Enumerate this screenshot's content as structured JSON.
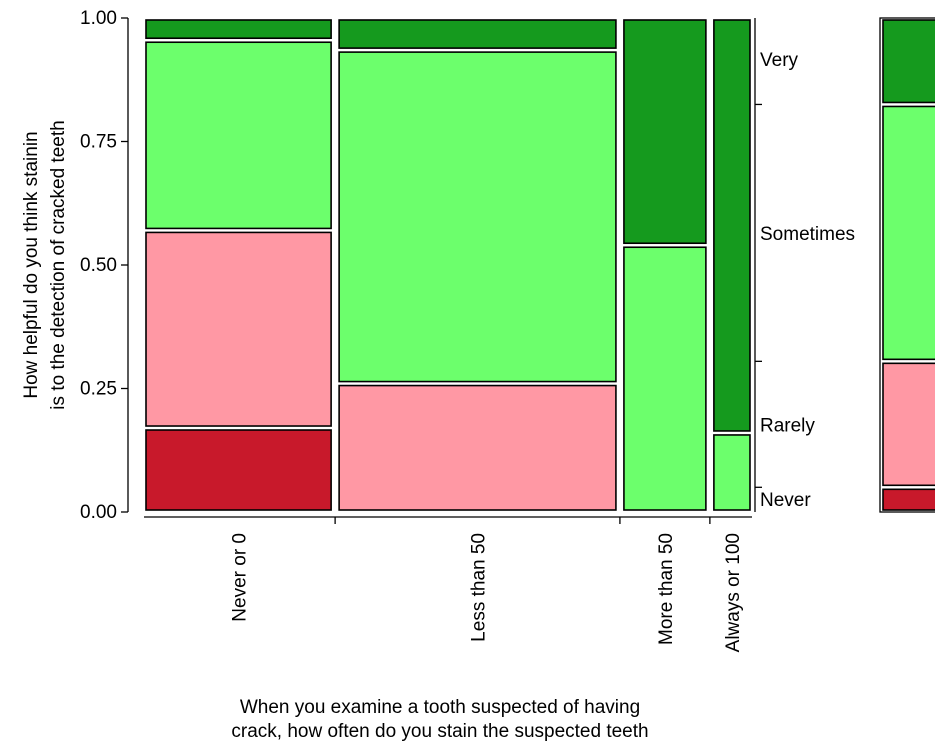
{
  "chart_data": {
    "type": "mosaic",
    "xlabel_lines": [
      "When you examine a tooth suspected of having",
      "crack, how often do you stain the suspected teeth"
    ],
    "ylabel_lines": [
      "How helpful do you think stainin",
      "is to the detection of cracked teeth"
    ],
    "ylim": [
      0,
      1
    ],
    "yticks": [
      "0.00",
      "0.25",
      "0.50",
      "0.75",
      "1.00"
    ],
    "ytick_values": [
      0,
      0.25,
      0.5,
      0.75,
      1
    ],
    "categories": [
      "Never or 0",
      "Less than 50",
      "More than 50",
      "Always or 100"
    ],
    "column_widths": [
      0.33,
      0.49,
      0.15,
      0.07
    ],
    "levels": [
      "Never",
      "Rarely",
      "Sometimes",
      "Very"
    ],
    "level_colors": {
      "Never": "#c8192b",
      "Rarely": "#ff98a4",
      "Sometimes": "#6cff6c",
      "Very": "#159a1e"
    },
    "proportions": [
      {
        "category": "Never or 0",
        "Never": 0.17,
        "Rarely": 0.4,
        "Sometimes": 0.385,
        "Very": 0.045
      },
      {
        "category": "Less than 50",
        "Never": 0.0,
        "Rarely": 0.26,
        "Sometimes": 0.675,
        "Very": 0.065
      },
      {
        "category": "More than 50",
        "Never": 0.0,
        "Rarely": 0.0,
        "Sometimes": 0.54,
        "Very": 0.46
      },
      {
        "category": "Always or 100",
        "Never": 0.0,
        "Rarely": 0.0,
        "Sometimes": 0.16,
        "Very": 0.84
      }
    ],
    "marginal": {
      "Never": 0.05,
      "Rarely": 0.255,
      "Sometimes": 0.52,
      "Very": 0.175
    },
    "right_axis_labels": [
      "Very",
      "Sometimes",
      "Rarely",
      "Never"
    ]
  }
}
